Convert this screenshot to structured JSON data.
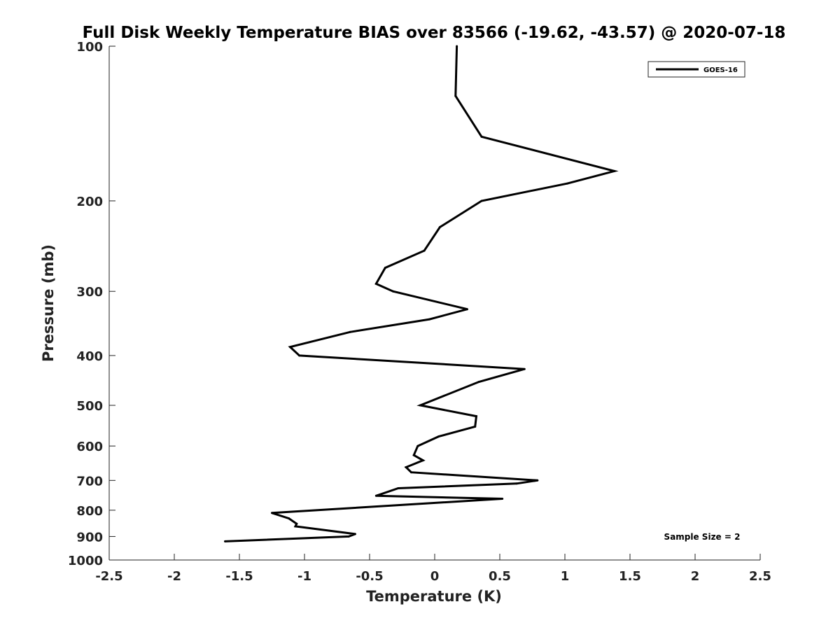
{
  "chart_data": {
    "type": "line",
    "title": "Full Disk Weekly Temperature BIAS over 83566 (-19.62, -43.57) @ 2020-07-18",
    "xlabel": "Temperature (K)",
    "ylabel": "Pressure (mb)",
    "xlim": [
      -2.5,
      2.5
    ],
    "ylim": [
      100,
      1000
    ],
    "y_scale": "log",
    "y_reversed": true,
    "grid": false,
    "legend_position": "top-right",
    "x_ticks": [
      -2.5,
      -2,
      -1.5,
      -1,
      -0.5,
      0,
      0.5,
      1,
      1.5,
      2,
      2.5
    ],
    "x_tick_labels": [
      "-2.5",
      "-2",
      "-1.5",
      "-1",
      "-0.5",
      "0",
      "0.5",
      "1",
      "1.5",
      "2",
      "2.5"
    ],
    "y_ticks": [
      100,
      200,
      300,
      400,
      500,
      600,
      700,
      800,
      900,
      1000
    ],
    "y_tick_labels": [
      "100",
      "200",
      "300",
      "400",
      "500",
      "600",
      "700",
      "800",
      "900",
      "1000"
    ],
    "series": [
      {
        "name": "GOES-16",
        "color": "#000000",
        "points": [
          {
            "x": 0.17,
            "p": 100
          },
          {
            "x": 0.16,
            "p": 125
          },
          {
            "x": 0.36,
            "p": 150
          },
          {
            "x": 1.38,
            "p": 175
          },
          {
            "x": 1.02,
            "p": 185
          },
          {
            "x": 0.36,
            "p": 200
          },
          {
            "x": 0.04,
            "p": 225
          },
          {
            "x": -0.08,
            "p": 250
          },
          {
            "x": -0.38,
            "p": 270
          },
          {
            "x": -0.45,
            "p": 290
          },
          {
            "x": -0.32,
            "p": 300
          },
          {
            "x": 0.25,
            "p": 325
          },
          {
            "x": -0.04,
            "p": 340
          },
          {
            "x": -0.65,
            "p": 360
          },
          {
            "x": -1.11,
            "p": 385
          },
          {
            "x": -1.04,
            "p": 400
          },
          {
            "x": 0.69,
            "p": 425
          },
          {
            "x": 0.34,
            "p": 450
          },
          {
            "x": -0.11,
            "p": 500
          },
          {
            "x": 0.32,
            "p": 525
          },
          {
            "x": 0.31,
            "p": 550
          },
          {
            "x": 0.03,
            "p": 575
          },
          {
            "x": -0.13,
            "p": 600
          },
          {
            "x": -0.16,
            "p": 625
          },
          {
            "x": -0.09,
            "p": 640
          },
          {
            "x": -0.22,
            "p": 660
          },
          {
            "x": -0.18,
            "p": 675
          },
          {
            "x": 0.79,
            "p": 700
          },
          {
            "x": 0.63,
            "p": 710
          },
          {
            "x": -0.28,
            "p": 725
          },
          {
            "x": -0.45,
            "p": 750
          },
          {
            "x": 0.52,
            "p": 760
          },
          {
            "x": -1.25,
            "p": 810
          },
          {
            "x": -1.12,
            "p": 830
          },
          {
            "x": -1.06,
            "p": 850
          },
          {
            "x": -1.07,
            "p": 860
          },
          {
            "x": -0.61,
            "p": 890
          },
          {
            "x": -0.66,
            "p": 900
          },
          {
            "x": -1.61,
            "p": 920
          }
        ]
      }
    ],
    "annotation": "Sample Size = 2"
  }
}
